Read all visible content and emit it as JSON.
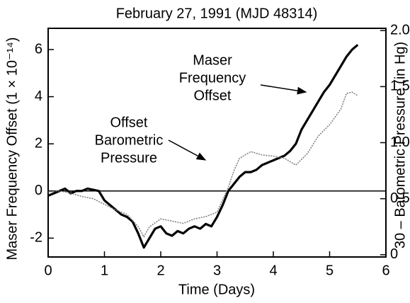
{
  "chart_data": {
    "type": "line",
    "title": "February 27, 1991 (MJD 48314)",
    "x_label": "Time (Days)",
    "y_label": "Maser Frequency Offset (1 × 10⁻¹⁴)",
    "y2_label": "30 – Barometric Pressure (in Hg)",
    "xlim": [
      0,
      6
    ],
    "xticks": [
      0,
      1,
      2,
      3,
      4,
      5,
      6
    ],
    "ylim": [
      -2.8,
      6.9
    ],
    "yticks": [
      -2,
      0,
      2,
      4,
      6
    ],
    "y2lim": [
      -0.02,
      2.02
    ],
    "y2ticks": [
      0,
      0.5,
      {
        "value": 1,
        "label": "1.0"
      },
      1.5,
      {
        "value": 2,
        "label": "2.0"
      }
    ],
    "series": [
      {
        "name": "Maser Frequency Offset",
        "color": "#000000",
        "axis": "y",
        "x": [
          0,
          0.1,
          0.2,
          0.3,
          0.4,
          0.5,
          0.6,
          0.7,
          0.8,
          0.9,
          1.0,
          1.1,
          1.2,
          1.3,
          1.4,
          1.5,
          1.6,
          1.7,
          1.8,
          1.9,
          2.0,
          2.1,
          2.2,
          2.3,
          2.4,
          2.5,
          2.6,
          2.7,
          2.8,
          2.9,
          3.0,
          3.1,
          3.2,
          3.3,
          3.4,
          3.5,
          3.6,
          3.7,
          3.8,
          3.9,
          4.0,
          4.1,
          4.2,
          4.3,
          4.4,
          4.5,
          4.6,
          4.7,
          4.8,
          4.9,
          5.0,
          5.1,
          5.2,
          5.3,
          5.4,
          5.5
        ],
        "values": [
          -0.2,
          -0.1,
          0.0,
          0.1,
          -0.1,
          0.0,
          0.0,
          0.1,
          0.05,
          0.0,
          -0.4,
          -0.6,
          -0.8,
          -1.0,
          -1.1,
          -1.3,
          -1.8,
          -2.4,
          -2.0,
          -1.6,
          -1.5,
          -1.8,
          -1.9,
          -1.7,
          -1.8,
          -1.6,
          -1.5,
          -1.6,
          -1.4,
          -1.5,
          -1.1,
          -0.6,
          0.0,
          0.3,
          0.6,
          0.8,
          0.8,
          0.9,
          1.1,
          1.2,
          1.3,
          1.4,
          1.5,
          1.7,
          2.0,
          2.6,
          3.0,
          3.4,
          3.8,
          4.2,
          4.5,
          4.9,
          5.3,
          5.7,
          6.0,
          6.2
        ]
      },
      {
        "name": "Offset Barometric Pressure",
        "color": "#7a7a7a",
        "axis": "y2",
        "x": [
          0,
          0.2,
          0.4,
          0.6,
          0.8,
          1.0,
          1.2,
          1.4,
          1.6,
          1.7,
          1.8,
          2.0,
          2.2,
          2.4,
          2.6,
          2.8,
          3.0,
          3.2,
          3.3,
          3.4,
          3.6,
          3.8,
          4.0,
          4.2,
          4.4,
          4.6,
          4.8,
          5.0,
          5.2,
          5.3,
          5.4,
          5.5
        ],
        "values": [
          0.56,
          0.57,
          0.55,
          0.52,
          0.5,
          0.45,
          0.4,
          0.36,
          0.25,
          0.16,
          0.25,
          0.32,
          0.3,
          0.28,
          0.32,
          0.34,
          0.38,
          0.6,
          0.75,
          0.86,
          0.92,
          0.89,
          0.88,
          0.86,
          0.8,
          0.9,
          1.06,
          1.16,
          1.3,
          1.44,
          1.45,
          1.42
        ]
      }
    ],
    "annotations": [
      {
        "lines": [
          "Maser",
          "Frequency",
          "Offset"
        ]
      },
      {
        "lines": [
          "Offset",
          "Barometric",
          "Pressure"
        ]
      }
    ]
  }
}
